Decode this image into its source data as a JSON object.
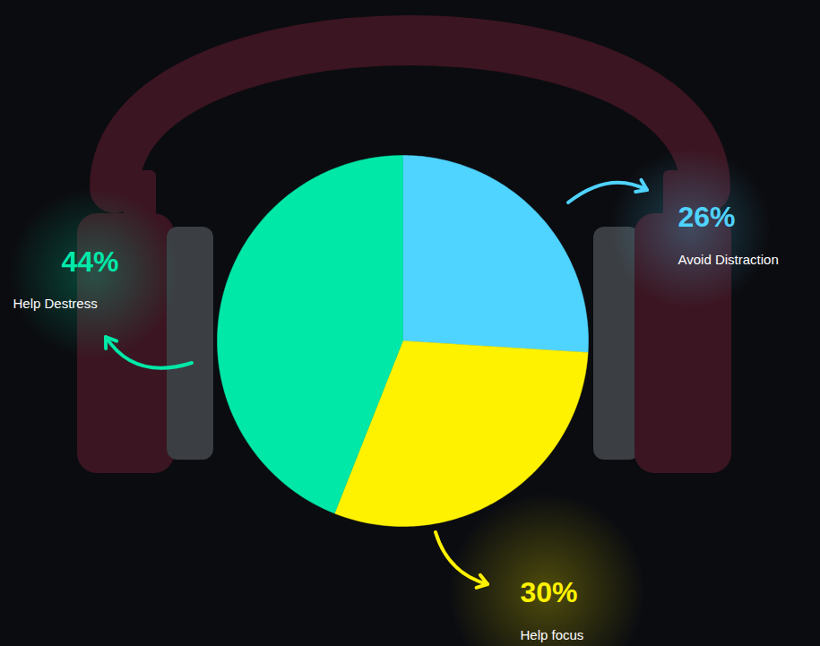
{
  "chart_data": {
    "type": "pie",
    "categories": [
      "Avoid Distraction",
      "Help focus",
      "Help Destress"
    ],
    "values": [
      26,
      30,
      44
    ],
    "value_labels": [
      "26%",
      "30%",
      "44%"
    ],
    "colors": [
      "#4fd3ff",
      "#fff200",
      "#00e8a8"
    ],
    "data_labels": true,
    "tick_labels": false
  }
}
